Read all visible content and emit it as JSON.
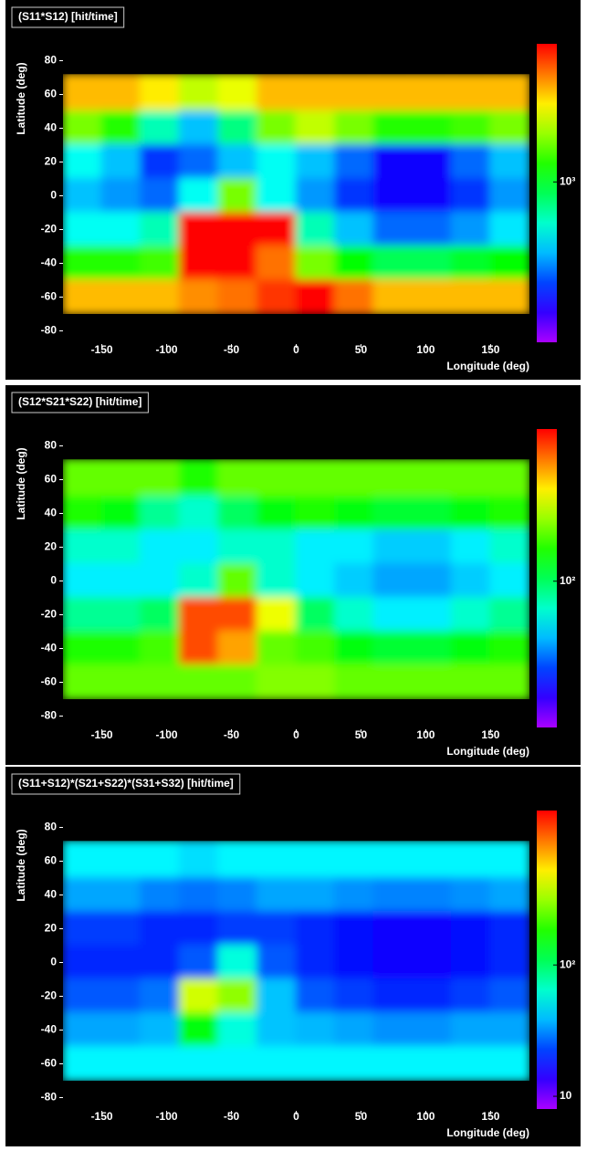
{
  "chart_data": [
    {
      "type": "heatmap",
      "title": "(S11*S12) [hit/time]",
      "xlabel": "Longitude (deg)",
      "ylabel": "Latitude (deg)",
      "xlim": [
        -180,
        180
      ],
      "ylim": [
        -90,
        90
      ],
      "xticks": [
        -150,
        -100,
        -50,
        0,
        50,
        100,
        150
      ],
      "yticks": [
        -80,
        -60,
        -40,
        -20,
        0,
        20,
        40,
        60,
        80
      ],
      "x": [
        -180,
        -150,
        -120,
        -90,
        -60,
        -30,
        0,
        30,
        60,
        90,
        120,
        150,
        180
      ],
      "y": [
        72,
        50,
        30,
        10,
        -10,
        -30,
        -50,
        -70
      ],
      "z": [
        [
          2500,
          2500,
          2200,
          1800,
          2000,
          2500,
          2500,
          2500,
          2500,
          2500,
          2500,
          2500
        ],
        [
          1500,
          1200,
          700,
          500,
          800,
          1500,
          1800,
          1500,
          1200,
          1200,
          1300,
          1500
        ],
        [
          600,
          500,
          350,
          400,
          500,
          600,
          500,
          400,
          300,
          300,
          400,
          500
        ],
        [
          500,
          450,
          400,
          600,
          1500,
          600,
          450,
          350,
          300,
          300,
          350,
          450
        ],
        [
          600,
          600,
          700,
          5000,
          5000,
          5000,
          700,
          500,
          400,
          400,
          450,
          550
        ],
        [
          1200,
          1200,
          1300,
          5000,
          5000,
          3000,
          1500,
          1100,
          900,
          900,
          1000,
          1100
        ],
        [
          2500,
          2500,
          2500,
          2800,
          3000,
          3500,
          4000,
          3000,
          2500,
          2500,
          2500,
          2500
        ]
      ],
      "colorbar": {
        "scale": "log",
        "clim": [
          200,
          4000
        ],
        "ticks": [
          {
            "value": 1000,
            "label": "10³"
          }
        ]
      }
    },
    {
      "type": "heatmap",
      "title": "(S12*S21*S22) [hit/time]",
      "xlabel": "Longitude (deg)",
      "ylabel": "Latitude (deg)",
      "xlim": [
        -180,
        180
      ],
      "ylim": [
        -90,
        90
      ],
      "xticks": [
        -150,
        -100,
        -50,
        0,
        50,
        100,
        150
      ],
      "yticks": [
        -80,
        -60,
        -40,
        -20,
        0,
        20,
        40,
        60,
        80
      ],
      "x": [
        -180,
        -150,
        -120,
        -90,
        -60,
        -30,
        0,
        30,
        60,
        90,
        120,
        150,
        180
      ],
      "y": [
        72,
        50,
        30,
        10,
        -10,
        -30,
        -50,
        -70
      ],
      "z": [
        [
          150,
          150,
          150,
          130,
          150,
          150,
          150,
          150,
          150,
          150,
          150,
          150
        ],
        [
          130,
          120,
          90,
          80,
          100,
          120,
          130,
          120,
          110,
          110,
          120,
          130
        ],
        [
          80,
          80,
          70,
          70,
          80,
          80,
          70,
          70,
          65,
          65,
          70,
          80
        ],
        [
          70,
          70,
          70,
          80,
          150,
          80,
          70,
          65,
          60,
          60,
          65,
          70
        ],
        [
          90,
          90,
          100,
          300,
          300,
          200,
          100,
          80,
          70,
          70,
          80,
          90
        ],
        [
          130,
          130,
          140,
          300,
          250,
          150,
          140,
          120,
          110,
          110,
          120,
          130
        ],
        [
          150,
          150,
          150,
          150,
          150,
          160,
          160,
          150,
          150,
          150,
          150,
          150
        ]
      ],
      "colorbar": {
        "scale": "log",
        "clim": [
          30,
          350
        ],
        "ticks": [
          {
            "value": 100,
            "label": "10²"
          }
        ]
      }
    },
    {
      "type": "heatmap",
      "title": "(S11+S12)*(S21+S22)*(S31+S32) [hit/time]",
      "xlabel": "Longitude (deg)",
      "ylabel": "Latitude (deg)",
      "xlim": [
        -180,
        180
      ],
      "ylim": [
        -90,
        90
      ],
      "xticks": [
        -150,
        -100,
        -50,
        0,
        50,
        100,
        150
      ],
      "yticks": [
        -80,
        -60,
        -40,
        -20,
        0,
        20,
        40,
        60,
        80
      ],
      "x": [
        -180,
        -150,
        -120,
        -90,
        -60,
        -30,
        0,
        30,
        60,
        90,
        120,
        150,
        180
      ],
      "y": [
        72,
        50,
        30,
        10,
        -10,
        -30,
        -50,
        -70
      ],
      "z": [
        [
          50,
          50,
          50,
          45,
          50,
          50,
          50,
          50,
          50,
          50,
          50,
          50
        ],
        [
          35,
          35,
          30,
          28,
          30,
          35,
          35,
          32,
          30,
          30,
          32,
          35
        ],
        [
          22,
          22,
          20,
          20,
          22,
          22,
          20,
          18,
          16,
          16,
          18,
          20
        ],
        [
          20,
          20,
          20,
          25,
          60,
          25,
          20,
          18,
          16,
          16,
          18,
          20
        ],
        [
          25,
          25,
          28,
          400,
          300,
          40,
          25,
          22,
          20,
          20,
          22,
          25
        ],
        [
          35,
          35,
          38,
          150,
          60,
          40,
          38,
          35,
          32,
          32,
          35,
          35
        ],
        [
          50,
          50,
          50,
          50,
          50,
          50,
          50,
          50,
          50,
          50,
          50,
          50
        ]
      ],
      "colorbar": {
        "scale": "log",
        "clim": [
          8,
          1500
        ],
        "ticks": [
          10,
          {
            "value": 100,
            "label": "10²"
          }
        ]
      }
    }
  ]
}
